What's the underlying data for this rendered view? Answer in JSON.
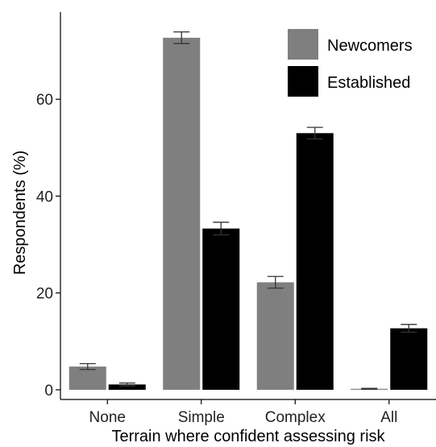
{
  "chart_data": {
    "type": "bar",
    "categories": [
      "None",
      "Simple",
      "Complex",
      "All"
    ],
    "series": [
      {
        "name": "Newcomers",
        "color": "#7f7f7f",
        "values": [
          4.8,
          72.7,
          22.2,
          0.2
        ],
        "error": [
          0.6,
          1.2,
          1.2,
          0.1
        ]
      },
      {
        "name": "Established",
        "color": "#000000",
        "values": [
          1.1,
          33.3,
          53.0,
          12.7
        ],
        "error": [
          0.3,
          1.3,
          1.2,
          0.8
        ]
      }
    ],
    "xlabel": "Terrain where confident assessing risk",
    "ylabel": "Respondents (%)",
    "ylim": [
      -2,
      78
    ],
    "yticks": [
      0,
      20,
      40,
      60
    ],
    "grid": false,
    "legend_position": "top-right",
    "error_bars": true
  }
}
